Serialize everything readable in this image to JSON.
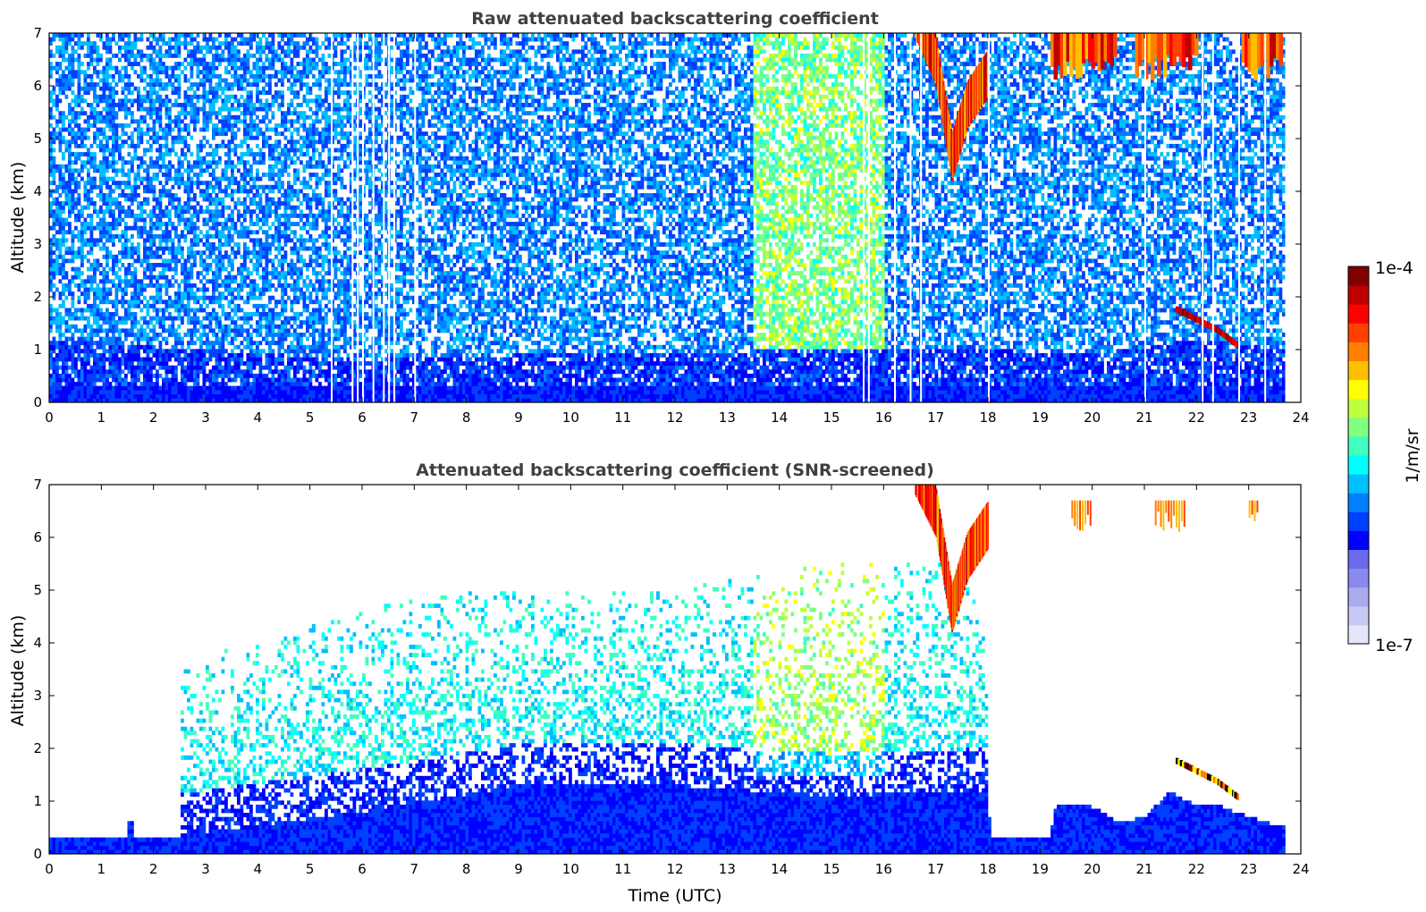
{
  "chart_data": [
    {
      "type": "heatmap",
      "title": "Raw attenuated backscattering coefficient",
      "xlabel": "",
      "ylabel": "Altitude (km)",
      "xlim": [
        0,
        24
      ],
      "ylim": [
        0,
        7
      ],
      "xticks": [
        "0",
        "1",
        "2",
        "3",
        "4",
        "5",
        "6",
        "7",
        "8",
        "9",
        "10",
        "11",
        "12",
        "13",
        "14",
        "15",
        "16",
        "17",
        "18",
        "19",
        "20",
        "21",
        "22",
        "23",
        "24"
      ],
      "yticks": [
        "0",
        "1",
        "2",
        "3",
        "4",
        "5",
        "6",
        "7"
      ],
      "colormap": "jet",
      "color_scale": "log",
      "data_end_hour": 23.7,
      "features": {
        "boundary_layer_top_km": [
          [
            0,
            1.2
          ],
          [
            3,
            1.0
          ],
          [
            6,
            0.8
          ],
          [
            9,
            0.9
          ],
          [
            12,
            0.9
          ],
          [
            14,
            1.0
          ],
          [
            18,
            1.0
          ],
          [
            20,
            0.9
          ],
          [
            22,
            1.2
          ],
          [
            23.7,
            1.0
          ]
        ],
        "cirrus_descending": [
          [
            16.6,
            6.9
          ],
          [
            17.0,
            6.0
          ],
          [
            17.3,
            4.2
          ],
          [
            17.6,
            5.2
          ],
          [
            18.0,
            5.8
          ]
        ],
        "cirrus_top": [
          [
            19.2,
            6.2
          ],
          [
            21.5,
            6.2
          ],
          [
            23.2,
            6.2
          ]
        ],
        "thin_layer": [
          [
            21.6,
            1.7
          ],
          [
            22.4,
            1.3
          ],
          [
            22.8,
            1.0
          ]
        ],
        "aerosol_enhancement_hours": [
          13.5,
          16.0
        ],
        "dropout_hours": [
          5.4,
          5.8,
          5.9,
          6.0,
          6.2,
          6.4,
          6.5,
          6.6,
          7.0,
          15.6,
          15.7,
          16.2,
          16.5,
          16.7,
          18.0,
          21.0,
          22.1,
          22.3,
          22.8,
          23.3
        ]
      }
    },
    {
      "type": "heatmap",
      "title": "Attenuated backscattering coefficient (SNR-screened)",
      "xlabel": "Time (UTC)",
      "ylabel": "Altitude (km)",
      "xlim": [
        0,
        24
      ],
      "ylim": [
        0,
        7
      ],
      "xticks": [
        "0",
        "1",
        "2",
        "3",
        "4",
        "5",
        "6",
        "7",
        "8",
        "9",
        "10",
        "11",
        "12",
        "13",
        "14",
        "15",
        "16",
        "17",
        "18",
        "19",
        "20",
        "21",
        "22",
        "23",
        "24"
      ],
      "yticks": [
        "0",
        "1",
        "2",
        "3",
        "4",
        "5",
        "6",
        "7"
      ],
      "colormap": "jet",
      "color_scale": "log",
      "data_end_hour": 23.7,
      "features": {
        "surface_layer_top_km": [
          [
            0,
            0.3
          ],
          [
            1.5,
            0.3
          ],
          [
            1.55,
            0.85
          ],
          [
            1.65,
            0.3
          ],
          [
            2.5,
            0.35
          ],
          [
            6,
            0.8
          ],
          [
            9,
            1.3
          ],
          [
            12,
            1.3
          ],
          [
            15,
            1.1
          ],
          [
            18,
            1.2
          ],
          [
            18.05,
            0.35
          ],
          [
            19.2,
            0.35
          ],
          [
            19.3,
            0.9
          ],
          [
            20,
            0.9
          ],
          [
            20.5,
            0.6
          ],
          [
            21,
            0.7
          ],
          [
            21.5,
            1.2
          ],
          [
            22,
            0.9
          ],
          [
            22.5,
            0.9
          ],
          [
            23,
            0.7
          ],
          [
            23.7,
            0.5
          ]
        ],
        "signal_top_km": [
          [
            2.5,
            3.5
          ],
          [
            5,
            4.5
          ],
          [
            8,
            5.0
          ],
          [
            12,
            5.0
          ],
          [
            15,
            5.5
          ],
          [
            17.5,
            5.5
          ],
          [
            18,
            4.0
          ]
        ],
        "cirrus_descending": [
          [
            16.6,
            6.8
          ],
          [
            17.0,
            6.0
          ],
          [
            17.3,
            4.2
          ],
          [
            17.6,
            5.2
          ],
          [
            18.0,
            5.8
          ]
        ],
        "cirrus_top": [
          [
            19.6,
            6.7
          ],
          [
            21.5,
            6.5
          ],
          [
            23.1,
            6.5
          ]
        ],
        "thin_layer": [
          [
            21.6,
            1.7
          ],
          [
            22.4,
            1.3
          ],
          [
            22.8,
            1.0
          ]
        ]
      }
    }
  ],
  "colorbar": {
    "label": "1/m/sr",
    "max_label": "1e-4",
    "min_label": "1e-7",
    "colors": [
      "#e6e6fa",
      "#c8c8f4",
      "#aaaaf0",
      "#8a8aee",
      "#6a6aec",
      "#0000ff",
      "#0040ff",
      "#0080ff",
      "#00bfff",
      "#00ffff",
      "#40ffbf",
      "#80ff80",
      "#bfff40",
      "#ffff00",
      "#ffbf00",
      "#ff8000",
      "#ff4000",
      "#ff0000",
      "#bf0000",
      "#800000"
    ]
  }
}
